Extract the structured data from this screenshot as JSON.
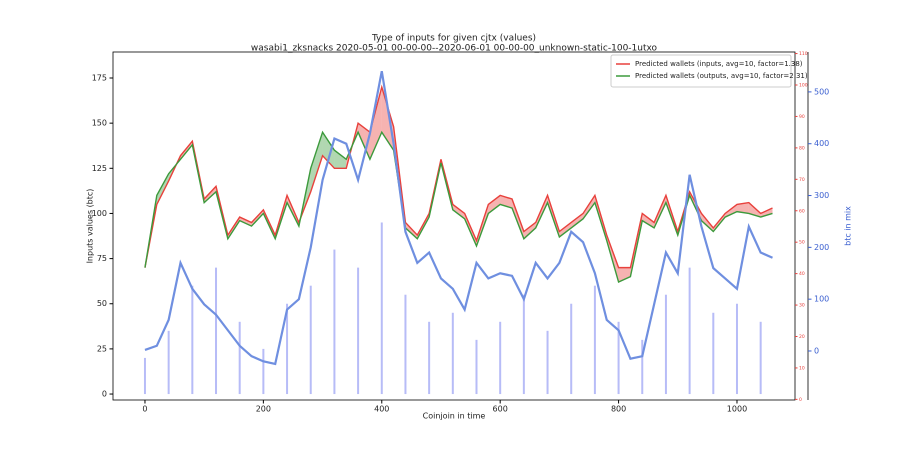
{
  "chart_data": {
    "type": "line",
    "title": "Type of inputs for given cjtx (values)",
    "subtitle": "wasabi1_zksnacks 2020-05-01 00-00-00--2020-06-01 00-00-00_unknown-static-100-1utxo",
    "xlabel": "Coinjoin in time",
    "ylabel": "Inputs values (btc)",
    "y2label": "btc in mix",
    "x": [
      0,
      20,
      40,
      60,
      80,
      100,
      120,
      140,
      160,
      180,
      200,
      220,
      240,
      260,
      280,
      300,
      320,
      340,
      360,
      380,
      400,
      420,
      440,
      460,
      480,
      500,
      520,
      540,
      560,
      580,
      600,
      620,
      640,
      660,
      680,
      700,
      720,
      740,
      760,
      780,
      800,
      820,
      840,
      860,
      880,
      900,
      920,
      940,
      960,
      980,
      1000,
      1020,
      1040,
      1060
    ],
    "series": [
      {
        "name": "Predicted wallets (inputs, avg=10, factor=1.38)",
        "color": "#e8413c",
        "values": [
          70,
          105,
          118,
          132,
          140,
          108,
          115,
          88,
          98,
          95,
          102,
          88,
          110,
          95,
          112,
          132,
          125,
          125,
          150,
          145,
          170,
          148,
          95,
          88,
          100,
          130,
          105,
          100,
          85,
          105,
          110,
          108,
          90,
          95,
          110,
          90,
          95,
          100,
          110,
          88,
          70,
          70,
          100,
          95,
          110,
          90,
          112,
          100,
          92,
          100,
          105,
          106,
          100,
          103
        ]
      },
      {
        "name": "Predicted wallets (outputs, avg=10, factor=2.31)",
        "color": "#3c9a3c",
        "values": [
          70,
          110,
          122,
          130,
          138,
          106,
          112,
          86,
          96,
          93,
          100,
          86,
          106,
          93,
          125,
          145,
          135,
          130,
          145,
          130,
          145,
          135,
          92,
          86,
          98,
          128,
          102,
          97,
          82,
          100,
          105,
          103,
          86,
          92,
          106,
          87,
          92,
          97,
          106,
          85,
          62,
          65,
          96,
          92,
          106,
          88,
          110,
          96,
          90,
          98,
          101,
          100,
          98,
          100
        ]
      },
      {
        "color": "#6f8fe0",
        "axis": "y2",
        "values": [
          2,
          10,
          60,
          170,
          120,
          90,
          70,
          40,
          10,
          -10,
          -20,
          -25,
          80,
          100,
          200,
          330,
          410,
          400,
          330,
          420,
          540,
          400,
          230,
          170,
          190,
          140,
          120,
          80,
          170,
          140,
          150,
          145,
          100,
          170,
          140,
          170,
          230,
          210,
          150,
          60,
          40,
          -15,
          -10,
          90,
          190,
          150,
          340,
          240,
          160,
          140,
          120,
          240,
          190,
          180
        ]
      }
    ],
    "fill_between": true,
    "bars": {
      "color": "#3040e8",
      "x": [
        0,
        40,
        80,
        120,
        160,
        200,
        240,
        280,
        320,
        360,
        400,
        440,
        480,
        520,
        560,
        600,
        640,
        680,
        720,
        760,
        800,
        840,
        880,
        920,
        960,
        1000,
        1040
      ],
      "values": [
        20,
        35,
        60,
        70,
        40,
        25,
        50,
        60,
        80,
        70,
        95,
        55,
        40,
        45,
        30,
        40,
        55,
        35,
        50,
        60,
        40,
        30,
        55,
        70,
        45,
        50,
        40
      ]
    },
    "xlim": [
      -54,
      1098
    ],
    "xticks": [
      0,
      200,
      400,
      600,
      800,
      1000
    ],
    "ylim": [
      -3.3,
      189.4
    ],
    "yticks": [
      0,
      25,
      50,
      75,
      100,
      125,
      150,
      175
    ],
    "y2lim": [
      -94.6,
      577
    ],
    "y2ticks": [
      0,
      100,
      200,
      300,
      400,
      500
    ],
    "y2color": "#3a5fd0",
    "y3lim": [
      -0.2,
      110.5
    ],
    "y3ticks": [
      0,
      10,
      20,
      30,
      40,
      50,
      60,
      70,
      80,
      90,
      100,
      110
    ],
    "y3color": "#e8413c",
    "legend": "upper right"
  }
}
